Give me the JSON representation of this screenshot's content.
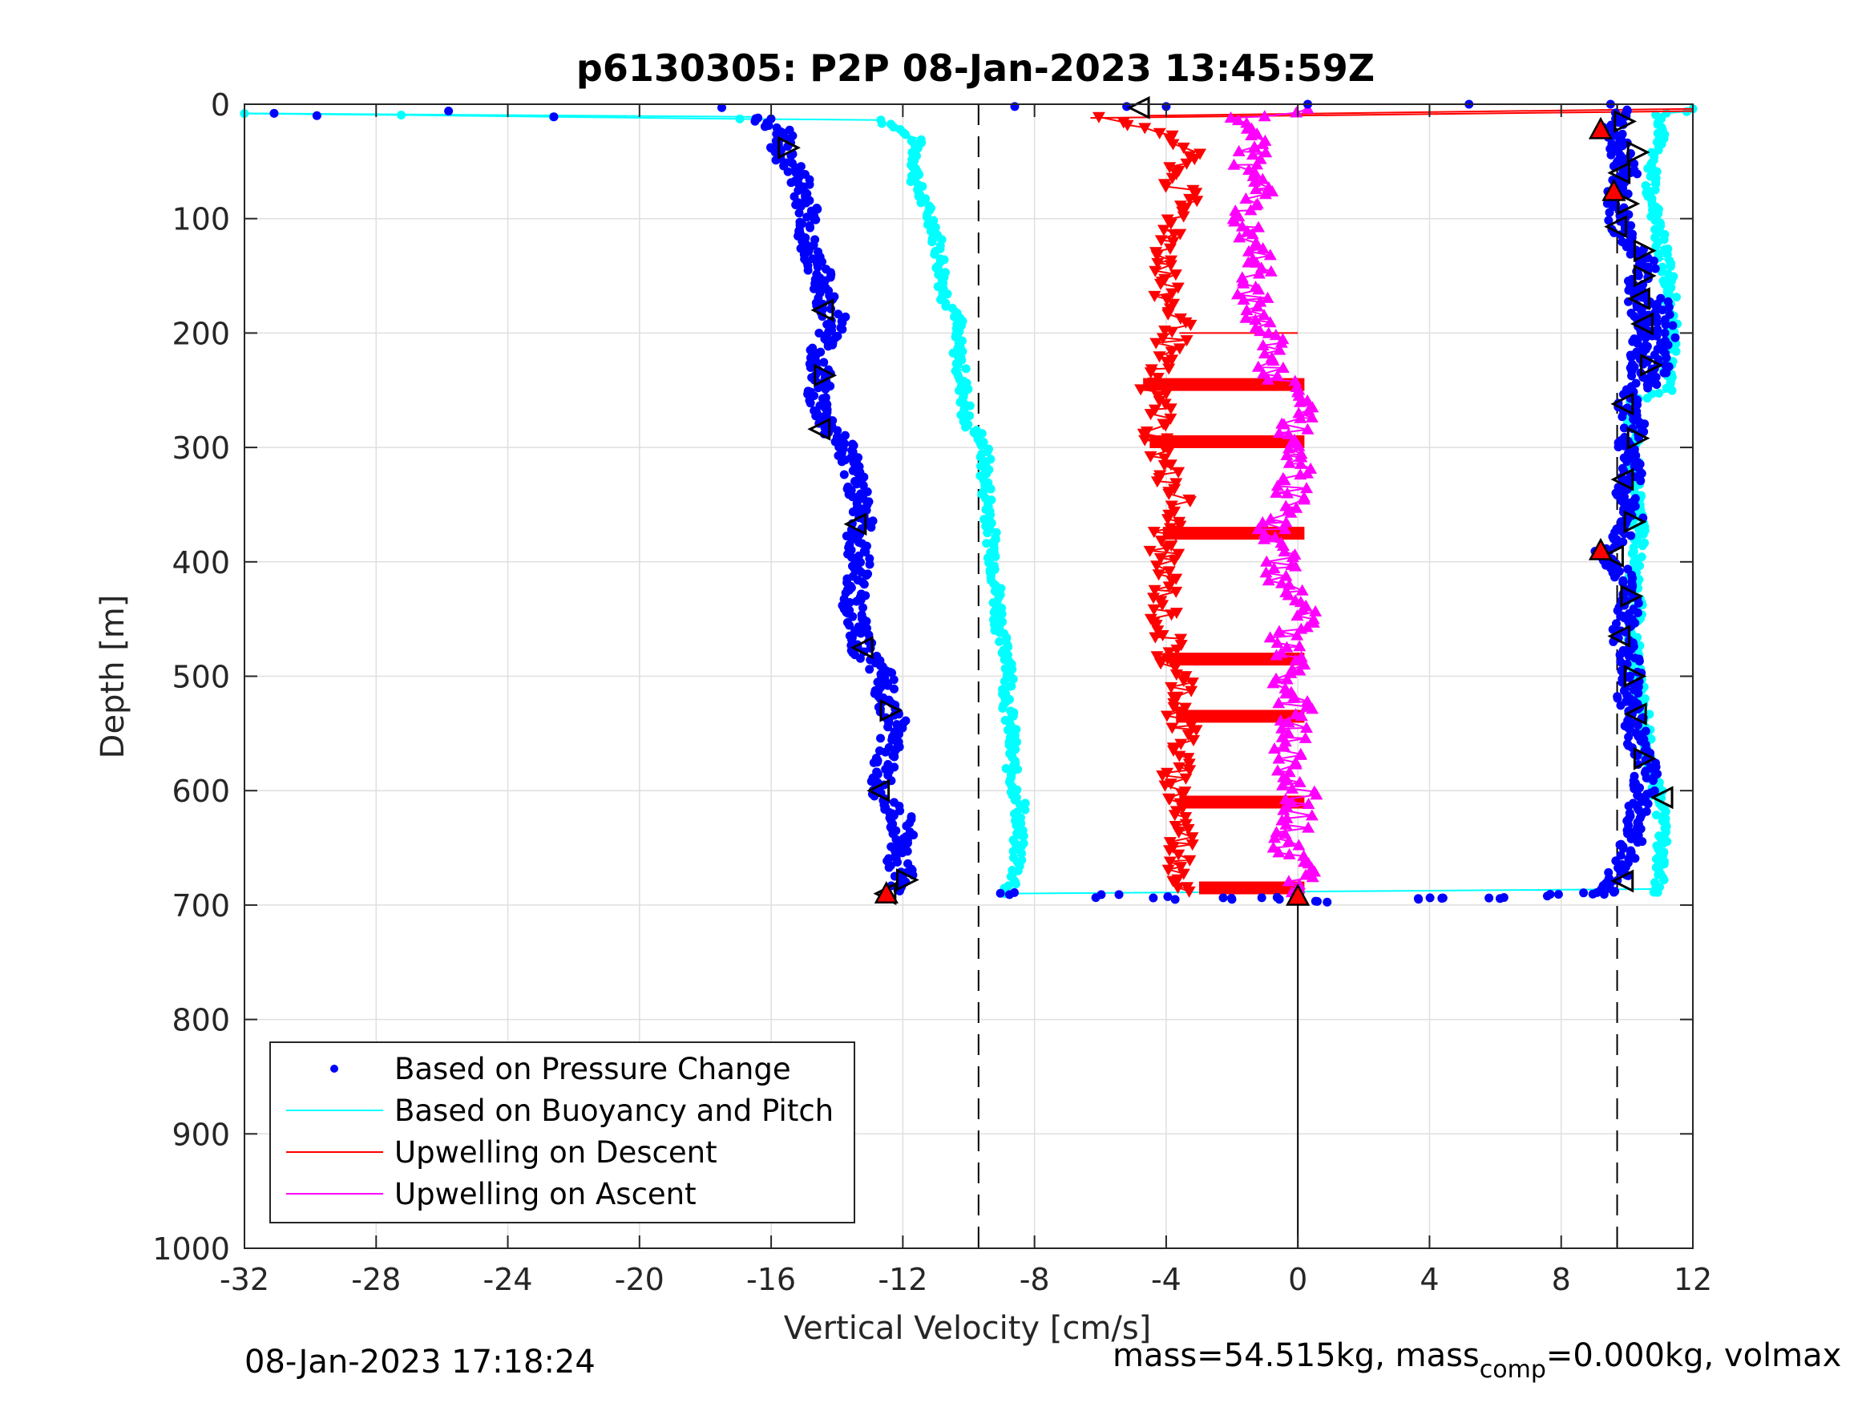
{
  "chart_data": {
    "type": "scatter",
    "title": "p6130305: P2P 08-Jan-2023 13:45:59Z",
    "xlabel": "Vertical Velocity [cm/s]",
    "ylabel": "Depth [m]",
    "xlim": [
      -32,
      12
    ],
    "ylim": [
      0,
      1000
    ],
    "y_reversed": true,
    "grid": true,
    "xticks": [
      "-32",
      "-28",
      "-24",
      "-20",
      "-16",
      "-12",
      "-8",
      "-4",
      "0",
      "4",
      "8",
      "12"
    ],
    "yticks": [
      "0",
      "100",
      "200",
      "300",
      "400",
      "500",
      "600",
      "700",
      "800",
      "900",
      "1000"
    ],
    "legend_position": "bottom-left",
    "reference_lines": {
      "dashed_x": [
        -9.7,
        9.7
      ],
      "solid_x": 0,
      "solid_from_depth": 692
    },
    "series": [
      {
        "name": "Based on Pressure Change",
        "color": "#0000ff",
        "marker": "dot",
        "descent": [
          [
            -31.1,
            8
          ],
          [
            -29.8,
            10
          ],
          [
            -25.8,
            6
          ],
          [
            -22.6,
            11
          ],
          [
            -17.5,
            3
          ],
          [
            -16.4,
            12
          ],
          [
            -15.6,
            25
          ],
          [
            -15.8,
            40
          ],
          [
            -15.2,
            60
          ],
          [
            -15.0,
            80
          ],
          [
            -14.8,
            100
          ],
          [
            -15.0,
            120
          ],
          [
            -14.6,
            140
          ],
          [
            -14.4,
            160
          ],
          [
            -14.3,
            180
          ],
          [
            -13.9,
            190
          ],
          [
            -14.2,
            200
          ],
          [
            -14.6,
            220
          ],
          [
            -14.5,
            240
          ],
          [
            -14.6,
            260
          ],
          [
            -14.3,
            280
          ],
          [
            -13.7,
            300
          ],
          [
            -13.6,
            320
          ],
          [
            -13.3,
            340
          ],
          [
            -13.2,
            360
          ],
          [
            -13.4,
            380
          ],
          [
            -13.3,
            400
          ],
          [
            -13.4,
            420
          ],
          [
            -13.5,
            440
          ],
          [
            -13.4,
            460
          ],
          [
            -13.2,
            480
          ],
          [
            -12.6,
            500
          ],
          [
            -12.5,
            520
          ],
          [
            -12.2,
            540
          ],
          [
            -12.4,
            560
          ],
          [
            -12.6,
            580
          ],
          [
            -12.7,
            600
          ],
          [
            -12.1,
            620
          ],
          [
            -12.0,
            640
          ],
          [
            -12.2,
            660
          ],
          [
            -11.9,
            680
          ],
          [
            -12.5,
            690
          ]
        ],
        "ascent": [
          [
            9.3,
            690
          ],
          [
            9.6,
            680
          ],
          [
            10.0,
            660
          ],
          [
            10.2,
            640
          ],
          [
            10.3,
            620
          ],
          [
            10.5,
            600
          ],
          [
            10.6,
            580
          ],
          [
            10.3,
            560
          ],
          [
            10.2,
            540
          ],
          [
            10.0,
            520
          ],
          [
            10.1,
            500
          ],
          [
            10.0,
            480
          ],
          [
            9.8,
            460
          ],
          [
            10.1,
            440
          ],
          [
            10.0,
            420
          ],
          [
            9.6,
            400
          ],
          [
            9.2,
            390
          ],
          [
            9.8,
            380
          ],
          [
            10.3,
            360
          ],
          [
            10.0,
            340
          ],
          [
            10.2,
            320
          ],
          [
            10.0,
            300
          ],
          [
            10.3,
            280
          ],
          [
            10.0,
            260
          ],
          [
            10.5,
            240
          ],
          [
            10.3,
            220
          ],
          [
            10.6,
            200
          ],
          [
            10.4,
            180
          ],
          [
            10.3,
            160
          ],
          [
            10.6,
            140
          ],
          [
            10.1,
            120
          ],
          [
            9.7,
            100
          ],
          [
            9.7,
            80
          ],
          [
            10.0,
            60
          ],
          [
            9.8,
            40
          ],
          [
            9.5,
            20
          ],
          [
            10.0,
            5
          ],
          [
            5.2,
            0
          ]
        ],
        "turn": [
          [
            -8.8,
            690
          ],
          [
            -5.8,
            692
          ],
          [
            -4.1,
            694
          ],
          [
            -2.2,
            695
          ],
          [
            -0.8,
            694
          ],
          [
            0.8,
            697
          ],
          [
            3.9,
            695
          ],
          [
            4.6,
            694
          ],
          [
            6.2,
            693
          ],
          [
            7.6,
            691
          ],
          [
            8.9,
            689
          ]
        ],
        "surface": [
          [
            -8.6,
            2
          ],
          [
            -5.2,
            2
          ],
          [
            -4.0,
            2
          ],
          [
            0.3,
            0
          ],
          [
            9.5,
            0
          ]
        ]
      },
      {
        "name": "Based on Buoyancy and Pitch",
        "color": "#00ffff",
        "marker": "dot-line",
        "descent": [
          [
            -32,
            8
          ],
          [
            -27.1,
            10
          ],
          [
            -22.6,
            11
          ],
          [
            -16.8,
            12
          ],
          [
            -12.7,
            14
          ],
          [
            -12.0,
            25
          ],
          [
            -11.6,
            30
          ],
          [
            -11.6,
            50
          ],
          [
            -11.6,
            70
          ],
          [
            -11.3,
            90
          ],
          [
            -11.0,
            110
          ],
          [
            -10.9,
            130
          ],
          [
            -10.8,
            150
          ],
          [
            -10.7,
            170
          ],
          [
            -10.3,
            185
          ],
          [
            -10.4,
            200
          ],
          [
            -10.3,
            220
          ],
          [
            -10.2,
            240
          ],
          [
            -10.1,
            260
          ],
          [
            -10.1,
            280
          ],
          [
            -9.6,
            290
          ],
          [
            -9.5,
            310
          ],
          [
            -9.5,
            330
          ],
          [
            -9.4,
            350
          ],
          [
            -9.3,
            380
          ],
          [
            -9.2,
            410
          ],
          [
            -9.1,
            440
          ],
          [
            -9.0,
            470
          ],
          [
            -8.7,
            490
          ],
          [
            -8.8,
            510
          ],
          [
            -8.8,
            530
          ],
          [
            -8.7,
            550
          ],
          [
            -8.7,
            580
          ],
          [
            -8.6,
            600
          ],
          [
            -8.4,
            610
          ],
          [
            -8.5,
            630
          ],
          [
            -8.5,
            660
          ],
          [
            -8.6,
            680
          ],
          [
            -8.9,
            690
          ]
        ],
        "ascent": [
          [
            10.9,
            690
          ],
          [
            11.0,
            670
          ],
          [
            11.1,
            640
          ],
          [
            11.0,
            610
          ],
          [
            10.8,
            590
          ],
          [
            10.6,
            560
          ],
          [
            10.5,
            530
          ],
          [
            10.3,
            500
          ],
          [
            10.2,
            470
          ],
          [
            10.3,
            440
          ],
          [
            10.2,
            410
          ],
          [
            10.4,
            380
          ],
          [
            10.3,
            350
          ],
          [
            10.2,
            320
          ],
          [
            10.2,
            290
          ],
          [
            10.1,
            260
          ],
          [
            11.2,
            250
          ],
          [
            11.3,
            220
          ],
          [
            11.4,
            190
          ],
          [
            11.3,
            160
          ],
          [
            11.1,
            130
          ],
          [
            10.9,
            100
          ],
          [
            10.7,
            70
          ],
          [
            10.9,
            40
          ],
          [
            11.1,
            20
          ],
          [
            11.0,
            10
          ],
          [
            12.0,
            4
          ]
        ]
      },
      {
        "name": "Upwelling on Descent",
        "color": "#ff0000",
        "marker": "triangle-down",
        "profile": [
          [
            -6.3,
            12
          ],
          [
            -4.0,
            25
          ],
          [
            -3.3,
            45
          ],
          [
            -3.8,
            65
          ],
          [
            -3.4,
            85
          ],
          [
            -3.7,
            105
          ],
          [
            -3.9,
            125
          ],
          [
            -4.0,
            145
          ],
          [
            -4.1,
            165
          ],
          [
            -3.7,
            185
          ],
          [
            -3.6,
            200
          ],
          [
            -4.2,
            220
          ],
          [
            -4.5,
            245
          ],
          [
            -4.1,
            265
          ],
          [
            -4.3,
            285
          ],
          [
            -4.2,
            300
          ],
          [
            -4.0,
            320
          ],
          [
            -3.6,
            345
          ],
          [
            -4.0,
            375
          ],
          [
            -4.1,
            400
          ],
          [
            -4.0,
            420
          ],
          [
            -4.1,
            450
          ],
          [
            -3.9,
            475
          ],
          [
            -4.0,
            490
          ],
          [
            -3.4,
            510
          ],
          [
            -3.6,
            535
          ],
          [
            -3.4,
            555
          ],
          [
            -3.7,
            575
          ],
          [
            -3.7,
            600
          ],
          [
            -3.6,
            615
          ],
          [
            -3.5,
            640
          ],
          [
            -3.6,
            660
          ],
          [
            -3.4,
            680
          ],
          [
            -3.3,
            688
          ]
        ],
        "horizontal_bands": [
          [
            -4.7,
            0.2,
            245
          ],
          [
            -4.5,
            0.2,
            295
          ],
          [
            -4.1,
            0.2,
            375
          ],
          [
            -3.9,
            0.2,
            485
          ],
          [
            -3.7,
            0.2,
            535
          ],
          [
            -3.6,
            0.2,
            610
          ],
          [
            -3.0,
            0.2,
            685
          ]
        ],
        "surface_lines": [
          [
            -6.3,
            12,
            12,
            6
          ]
        ],
        "markers": [
          [
            -12.5,
            690
          ],
          [
            0,
            692
          ],
          [
            9.2,
            22
          ],
          [
            9.6,
            76
          ],
          [
            9.2,
            390
          ]
        ]
      },
      {
        "name": "Upwelling on Ascent",
        "color": "#ff00ff",
        "marker": "triangle-up",
        "profile": [
          [
            0.0,
            688
          ],
          [
            0.2,
            670
          ],
          [
            -0.3,
            650
          ],
          [
            -0.1,
            630
          ],
          [
            0.1,
            610
          ],
          [
            0.0,
            590
          ],
          [
            -0.4,
            570
          ],
          [
            -0.2,
            550
          ],
          [
            0.1,
            530
          ],
          [
            -0.6,
            510
          ],
          [
            0.0,
            490
          ],
          [
            -0.5,
            470
          ],
          [
            0.2,
            450
          ],
          [
            -0.2,
            430
          ],
          [
            -0.6,
            410
          ],
          [
            -0.4,
            390
          ],
          [
            -0.8,
            370
          ],
          [
            -0.3,
            350
          ],
          [
            -0.1,
            330
          ],
          [
            0.1,
            310
          ],
          [
            -0.4,
            290
          ],
          [
            0.3,
            270
          ],
          [
            0.4,
            255
          ],
          [
            -0.6,
            240
          ],
          [
            -0.8,
            220
          ],
          [
            -1.0,
            200
          ],
          [
            -1.2,
            180
          ],
          [
            -1.5,
            160
          ],
          [
            -1.1,
            140
          ],
          [
            -1.3,
            120
          ],
          [
            -1.6,
            100
          ],
          [
            -1.2,
            80
          ],
          [
            -1.5,
            60
          ],
          [
            -1.4,
            40
          ],
          [
            -1.0,
            20
          ],
          [
            -1.9,
            12
          ],
          [
            0.3,
            4
          ]
        ]
      }
    ],
    "heading_markers": [
      {
        "x": -15.5,
        "y": 38,
        "dir": "right"
      },
      {
        "x": -14.4,
        "y": 180,
        "dir": "left"
      },
      {
        "x": -14.4,
        "y": 237,
        "dir": "right"
      },
      {
        "x": -14.5,
        "y": 284,
        "dir": "left"
      },
      {
        "x": -13.4,
        "y": 367,
        "dir": "left"
      },
      {
        "x": -13.2,
        "y": 475,
        "dir": "left"
      },
      {
        "x": -12.4,
        "y": 530,
        "dir": "right"
      },
      {
        "x": -12.7,
        "y": 600,
        "dir": "left"
      },
      {
        "x": -11.9,
        "y": 678,
        "dir": "right"
      },
      {
        "x": -12.5,
        "y": 690,
        "dir": "left"
      },
      {
        "x": -4.8,
        "y": 3,
        "dir": "left"
      },
      {
        "x": 9.9,
        "y": 15,
        "dir": "right"
      },
      {
        "x": 10.3,
        "y": 42,
        "dir": "right"
      },
      {
        "x": 9.8,
        "y": 60,
        "dir": "left"
      },
      {
        "x": 10.0,
        "y": 87,
        "dir": "right"
      },
      {
        "x": 9.7,
        "y": 107,
        "dir": "left"
      },
      {
        "x": 10.5,
        "y": 128,
        "dir": "right"
      },
      {
        "x": 10.5,
        "y": 150,
        "dir": "right"
      },
      {
        "x": 10.4,
        "y": 170,
        "dir": "left"
      },
      {
        "x": 10.5,
        "y": 192,
        "dir": "left"
      },
      {
        "x": 10.7,
        "y": 228,
        "dir": "right"
      },
      {
        "x": 9.9,
        "y": 262,
        "dir": "left"
      },
      {
        "x": 10.3,
        "y": 292,
        "dir": "right"
      },
      {
        "x": 9.9,
        "y": 328,
        "dir": "left"
      },
      {
        "x": 10.2,
        "y": 365,
        "dir": "right"
      },
      {
        "x": 9.6,
        "y": 395,
        "dir": "left"
      },
      {
        "x": 10.1,
        "y": 430,
        "dir": "right"
      },
      {
        "x": 9.8,
        "y": 465,
        "dir": "left"
      },
      {
        "x": 10.2,
        "y": 500,
        "dir": "right"
      },
      {
        "x": 10.3,
        "y": 533,
        "dir": "left"
      },
      {
        "x": 10.5,
        "y": 572,
        "dir": "right"
      },
      {
        "x": 11.1,
        "y": 606,
        "dir": "left"
      },
      {
        "x": 9.9,
        "y": 679,
        "dir": "left"
      }
    ]
  },
  "footer": {
    "timestamp": "08-Jan-2023 17:18:24",
    "mass_prefix": "mass=54.515kg, mass",
    "mass_subscript": "comp",
    "mass_suffix": "=0.000kg, volmax"
  }
}
